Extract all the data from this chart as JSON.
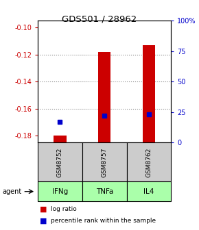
{
  "title": "GDS501 / 28962",
  "samples": [
    "GSM8752",
    "GSM8757",
    "GSM8762"
  ],
  "agents": [
    "IFNg",
    "TNFa",
    "IL4"
  ],
  "ylim_left": [
    -0.185,
    -0.095
  ],
  "ylim_right": [
    0,
    100
  ],
  "yticks_left": [
    -0.18,
    -0.16,
    -0.14,
    -0.12,
    -0.1
  ],
  "yticks_right": [
    0,
    25,
    50,
    75,
    100
  ],
  "ytick_labels_right": [
    "0",
    "25",
    "50",
    "75",
    "100%"
  ],
  "log_ratios": [
    -0.18,
    -0.118,
    -0.113
  ],
  "percentile_ranks": [
    17,
    22,
    23
  ],
  "bar_bottom": -0.185,
  "bar_color": "#cc0000",
  "dot_color": "#0000cc",
  "sample_bg_color": "#cccccc",
  "agent_bg_color": "#aaffaa",
  "grid_color": "#888888",
  "left_axis_color": "#cc0000",
  "right_axis_color": "#0000cc",
  "grid_lines": [
    -0.12,
    -0.14,
    -0.16
  ]
}
